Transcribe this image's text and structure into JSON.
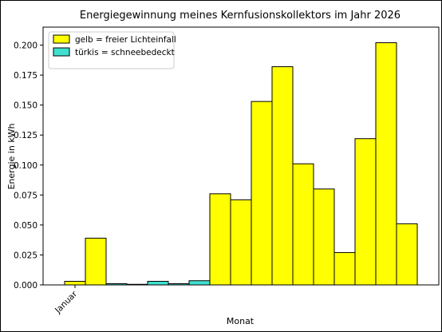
{
  "chart_data": {
    "type": "bar",
    "title": "Energiegewinnung meines Kernfusionskollektors im Jahr 2026",
    "xlabel": "Monat",
    "ylabel": "Energie in kWh",
    "x_tick_labels": [
      "Januar"
    ],
    "ylim": [
      0,
      0.215
    ],
    "yticks": [
      "0.000",
      "0.025",
      "0.050",
      "0.075",
      "0.100",
      "0.125",
      "0.150",
      "0.175",
      "0.200"
    ],
    "ytick_values": [
      0,
      0.025,
      0.05,
      0.075,
      0.1,
      0.125,
      0.15,
      0.175,
      0.2
    ],
    "grid": false,
    "legend_position": "top-left",
    "legend": [
      {
        "label": "gelb = freier Lichteinfall",
        "color": "#ffff00"
      },
      {
        "label": "türkis = schneebedeckt",
        "color": "#40e0d0"
      }
    ],
    "bars": [
      {
        "value": 0.003,
        "status": "frei",
        "color": "#ffff00"
      },
      {
        "value": 0.039,
        "status": "frei",
        "color": "#ffff00"
      },
      {
        "value": 0.001,
        "status": "schnee",
        "color": "#40e0d0"
      },
      {
        "value": 0.0005,
        "status": "schnee",
        "color": "#40e0d0"
      },
      {
        "value": 0.003,
        "status": "schnee",
        "color": "#40e0d0"
      },
      {
        "value": 0.001,
        "status": "schnee",
        "color": "#40e0d0"
      },
      {
        "value": 0.0035,
        "status": "schnee",
        "color": "#40e0d0"
      },
      {
        "value": 0.076,
        "status": "frei",
        "color": "#ffff00"
      },
      {
        "value": 0.071,
        "status": "frei",
        "color": "#ffff00"
      },
      {
        "value": 0.153,
        "status": "frei",
        "color": "#ffff00"
      },
      {
        "value": 0.182,
        "status": "frei",
        "color": "#ffff00"
      },
      {
        "value": 0.101,
        "status": "frei",
        "color": "#ffff00"
      },
      {
        "value": 0.08,
        "status": "frei",
        "color": "#ffff00"
      },
      {
        "value": 0.027,
        "status": "frei",
        "color": "#ffff00"
      },
      {
        "value": 0.122,
        "status": "frei",
        "color": "#ffff00"
      },
      {
        "value": 0.202,
        "status": "frei",
        "color": "#ffff00"
      },
      {
        "value": 0.051,
        "status": "frei",
        "color": "#ffff00"
      }
    ]
  }
}
